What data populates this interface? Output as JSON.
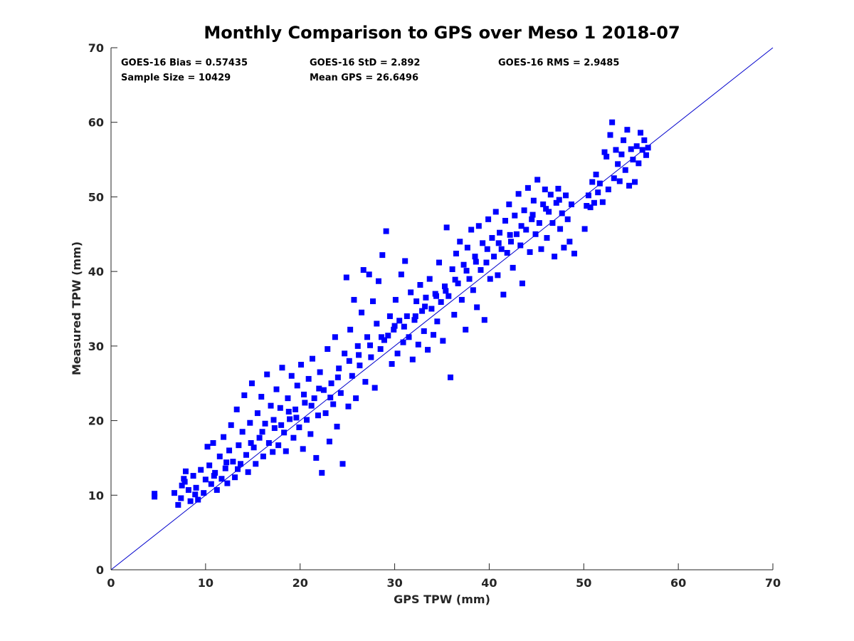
{
  "chart_data": {
    "type": "scatter",
    "title": "Monthly Comparison to GPS over Meso 1 2018-07",
    "xlabel": "GPS TPW (mm)",
    "ylabel": "Measured TPW (mm)",
    "xlim": [
      0,
      70
    ],
    "ylim": [
      0,
      70
    ],
    "xticks": [
      0,
      10,
      20,
      30,
      40,
      50,
      60,
      70
    ],
    "yticks": [
      0,
      10,
      20,
      30,
      40,
      50,
      60,
      70
    ],
    "grid": false,
    "legend": "none",
    "colors": {
      "points": "#0000ff",
      "reference_line": "#0000cc",
      "axes": "#262626"
    },
    "reference_line": {
      "from": [
        0,
        0
      ],
      "to": [
        70,
        70
      ]
    },
    "stats": [
      "GOES-16 Bias = 0.57435",
      "GOES-16 StD = 2.892",
      "GOES-16 RMS = 2.9485",
      "Sample Size = 10429",
      "Mean GPS = 26.6496"
    ],
    "series": [
      {
        "points": [
          [
            4.6,
            10.2
          ],
          [
            4.6,
            9.8
          ],
          [
            6.7,
            10.3
          ],
          [
            7.1,
            8.7
          ],
          [
            7.4,
            9.6
          ],
          [
            7.5,
            11.3
          ],
          [
            7.7,
            12.2
          ],
          [
            7.9,
            13.2
          ],
          [
            8.2,
            10.7
          ],
          [
            8.4,
            9.2
          ],
          [
            8.7,
            12.6
          ],
          [
            9.0,
            11.0
          ],
          [
            9.2,
            9.4
          ],
          [
            9.5,
            13.4
          ],
          [
            9.8,
            10.3
          ],
          [
            10.0,
            12.1
          ],
          [
            10.2,
            16.5
          ],
          [
            10.4,
            14.0
          ],
          [
            10.6,
            11.5
          ],
          [
            10.8,
            17.0
          ],
          [
            11.0,
            13.0
          ],
          [
            11.2,
            10.7
          ],
          [
            11.5,
            15.2
          ],
          [
            11.7,
            12.2
          ],
          [
            11.9,
            17.8
          ],
          [
            12.1,
            13.6
          ],
          [
            12.3,
            11.6
          ],
          [
            12.5,
            16.0
          ],
          [
            12.7,
            19.4
          ],
          [
            12.9,
            14.5
          ],
          [
            13.1,
            12.4
          ],
          [
            13.3,
            21.5
          ],
          [
            13.5,
            16.7
          ],
          [
            13.7,
            14.2
          ],
          [
            13.9,
            18.5
          ],
          [
            14.1,
            23.4
          ],
          [
            14.3,
            15.4
          ],
          [
            14.5,
            13.1
          ],
          [
            14.7,
            19.7
          ],
          [
            14.9,
            25.0
          ],
          [
            15.1,
            16.4
          ],
          [
            15.3,
            14.2
          ],
          [
            15.5,
            21.0
          ],
          [
            15.7,
            17.7
          ],
          [
            15.9,
            23.2
          ],
          [
            16.1,
            15.2
          ],
          [
            16.3,
            19.6
          ],
          [
            16.5,
            26.2
          ],
          [
            16.7,
            17.0
          ],
          [
            16.9,
            22.0
          ],
          [
            17.1,
            15.8
          ],
          [
            17.3,
            19.0
          ],
          [
            17.5,
            24.2
          ],
          [
            17.7,
            16.7
          ],
          [
            17.9,
            21.7
          ],
          [
            18.1,
            27.1
          ],
          [
            18.3,
            18.4
          ],
          [
            18.5,
            15.9
          ],
          [
            18.7,
            23.0
          ],
          [
            18.9,
            20.2
          ],
          [
            19.1,
            26.0
          ],
          [
            19.3,
            17.7
          ],
          [
            19.5,
            21.5
          ],
          [
            19.7,
            24.7
          ],
          [
            19.9,
            19.1
          ],
          [
            20.1,
            27.5
          ],
          [
            20.3,
            16.2
          ],
          [
            20.5,
            22.4
          ],
          [
            20.7,
            20.1
          ],
          [
            20.9,
            25.6
          ],
          [
            21.1,
            18.2
          ],
          [
            21.3,
            28.3
          ],
          [
            21.5,
            23.0
          ],
          [
            21.7,
            15.0
          ],
          [
            21.9,
            20.7
          ],
          [
            22.1,
            26.5
          ],
          [
            22.3,
            13.0
          ],
          [
            22.5,
            24.1
          ],
          [
            22.7,
            21.0
          ],
          [
            22.9,
            29.6
          ],
          [
            23.1,
            17.2
          ],
          [
            23.3,
            25.0
          ],
          [
            23.5,
            22.2
          ],
          [
            23.7,
            31.2
          ],
          [
            23.9,
            19.2
          ],
          [
            24.1,
            27.0
          ],
          [
            24.3,
            23.7
          ],
          [
            24.5,
            14.2
          ],
          [
            24.7,
            29.0
          ],
          [
            24.9,
            39.2
          ],
          [
            25.1,
            21.9
          ],
          [
            25.3,
            32.2
          ],
          [
            25.5,
            26.0
          ],
          [
            25.7,
            36.2
          ],
          [
            25.9,
            23.0
          ],
          [
            26.1,
            30.0
          ],
          [
            26.3,
            27.4
          ],
          [
            26.5,
            34.5
          ],
          [
            26.7,
            40.2
          ],
          [
            26.9,
            25.2
          ],
          [
            27.1,
            31.2
          ],
          [
            27.3,
            39.6
          ],
          [
            27.5,
            28.5
          ],
          [
            27.7,
            36.0
          ],
          [
            27.9,
            24.4
          ],
          [
            28.1,
            33.0
          ],
          [
            28.3,
            38.7
          ],
          [
            28.5,
            29.6
          ],
          [
            28.7,
            42.2
          ],
          [
            28.9,
            30.8
          ],
          [
            29.1,
            45.4
          ],
          [
            29.3,
            31.4
          ],
          [
            29.5,
            34.0
          ],
          [
            29.7,
            27.6
          ],
          [
            29.9,
            32.2
          ],
          [
            30.1,
            36.2
          ],
          [
            30.3,
            29.0
          ],
          [
            30.5,
            33.4
          ],
          [
            30.7,
            39.6
          ],
          [
            30.9,
            30.5
          ],
          [
            31.1,
            41.4
          ],
          [
            31.3,
            34.0
          ],
          [
            31.5,
            31.2
          ],
          [
            31.7,
            37.2
          ],
          [
            31.9,
            28.2
          ],
          [
            32.1,
            33.5
          ],
          [
            32.3,
            36.0
          ],
          [
            32.5,
            30.2
          ],
          [
            32.7,
            38.2
          ],
          [
            32.9,
            34.7
          ],
          [
            33.1,
            32.0
          ],
          [
            33.3,
            36.5
          ],
          [
            33.5,
            29.5
          ],
          [
            33.7,
            39.0
          ],
          [
            33.9,
            35.0
          ],
          [
            34.1,
            31.5
          ],
          [
            34.3,
            37.0
          ],
          [
            34.5,
            33.3
          ],
          [
            34.7,
            41.2
          ],
          [
            34.9,
            35.9
          ],
          [
            35.1,
            30.7
          ],
          [
            35.3,
            38.0
          ],
          [
            35.5,
            45.9
          ],
          [
            35.7,
            36.7
          ],
          [
            35.9,
            25.8
          ],
          [
            36.1,
            40.3
          ],
          [
            36.3,
            34.2
          ],
          [
            36.5,
            42.4
          ],
          [
            36.7,
            38.4
          ],
          [
            36.9,
            44.0
          ],
          [
            37.1,
            36.2
          ],
          [
            37.3,
            40.9
          ],
          [
            37.5,
            32.2
          ],
          [
            37.7,
            43.2
          ],
          [
            37.9,
            39.0
          ],
          [
            38.1,
            45.6
          ],
          [
            38.3,
            37.5
          ],
          [
            38.5,
            42.0
          ],
          [
            38.7,
            35.2
          ],
          [
            38.9,
            46.1
          ],
          [
            39.1,
            40.2
          ],
          [
            39.3,
            43.8
          ],
          [
            39.5,
            33.5
          ],
          [
            39.7,
            41.2
          ],
          [
            39.9,
            47.0
          ],
          [
            40.1,
            39.0
          ],
          [
            40.3,
            44.5
          ],
          [
            40.5,
            42.0
          ],
          [
            40.7,
            48.0
          ],
          [
            40.9,
            39.5
          ],
          [
            41.1,
            45.2
          ],
          [
            41.3,
            43.0
          ],
          [
            41.5,
            36.9
          ],
          [
            41.7,
            46.8
          ],
          [
            41.9,
            42.5
          ],
          [
            42.1,
            49.0
          ],
          [
            42.3,
            44.0
          ],
          [
            42.5,
            40.5
          ],
          [
            42.7,
            47.5
          ],
          [
            42.9,
            45.0
          ],
          [
            43.1,
            50.4
          ],
          [
            43.3,
            43.5
          ],
          [
            43.5,
            38.4
          ],
          [
            43.7,
            48.2
          ],
          [
            43.9,
            45.6
          ],
          [
            44.1,
            51.2
          ],
          [
            44.3,
            42.6
          ],
          [
            44.5,
            47.0
          ],
          [
            44.7,
            49.5
          ],
          [
            44.9,
            45.0
          ],
          [
            45.1,
            52.3
          ],
          [
            45.3,
            46.5
          ],
          [
            45.5,
            43.0
          ],
          [
            45.7,
            49.0
          ],
          [
            45.9,
            51.0
          ],
          [
            46.1,
            44.5
          ],
          [
            46.3,
            48.0
          ],
          [
            46.5,
            50.3
          ],
          [
            46.7,
            46.5
          ],
          [
            46.9,
            42.0
          ],
          [
            47.1,
            49.2
          ],
          [
            47.3,
            51.1
          ],
          [
            47.5,
            45.7
          ],
          [
            47.7,
            47.8
          ],
          [
            47.9,
            43.2
          ],
          [
            48.1,
            50.2
          ],
          [
            48.3,
            47.0
          ],
          [
            48.5,
            44.0
          ],
          [
            48.7,
            49.0
          ],
          [
            49.0,
            42.4
          ],
          [
            50.1,
            45.7
          ],
          [
            50.3,
            48.8
          ],
          [
            50.5,
            50.2
          ],
          [
            50.7,
            48.6
          ],
          [
            50.9,
            52.0
          ],
          [
            51.1,
            49.2
          ],
          [
            51.3,
            53.0
          ],
          [
            51.5,
            50.6
          ],
          [
            51.7,
            51.8
          ],
          [
            52.0,
            49.3
          ],
          [
            52.2,
            56.0
          ],
          [
            52.4,
            55.4
          ],
          [
            52.6,
            51.0
          ],
          [
            52.8,
            58.3
          ],
          [
            53.0,
            60.0
          ],
          [
            53.2,
            52.5
          ],
          [
            53.4,
            56.3
          ],
          [
            53.6,
            54.4
          ],
          [
            53.8,
            52.1
          ],
          [
            54.0,
            55.7
          ],
          [
            54.2,
            57.6
          ],
          [
            54.4,
            53.6
          ],
          [
            54.6,
            59.0
          ],
          [
            54.8,
            51.5
          ],
          [
            55.0,
            56.4
          ],
          [
            55.2,
            55.0
          ],
          [
            55.4,
            52.0
          ],
          [
            55.6,
            56.8
          ],
          [
            55.8,
            54.5
          ],
          [
            56.0,
            58.6
          ],
          [
            56.2,
            56.3
          ],
          [
            56.4,
            57.6
          ],
          [
            56.6,
            55.6
          ],
          [
            56.8,
            56.6
          ],
          [
            7.8,
            11.8
          ],
          [
            8.9,
            10.1
          ],
          [
            10.9,
            12.6
          ],
          [
            12.2,
            14.4
          ],
          [
            13.4,
            13.5
          ],
          [
            14.8,
            17.0
          ],
          [
            16.0,
            18.5
          ],
          [
            17.2,
            20.1
          ],
          [
            18.0,
            19.4
          ],
          [
            18.8,
            21.2
          ],
          [
            19.6,
            20.4
          ],
          [
            20.4,
            23.5
          ],
          [
            21.2,
            22.0
          ],
          [
            22.0,
            24.3
          ],
          [
            23.2,
            23.1
          ],
          [
            24.0,
            25.8
          ],
          [
            25.2,
            28.0
          ],
          [
            26.2,
            28.8
          ],
          [
            27.4,
            30.1
          ],
          [
            28.6,
            31.2
          ],
          [
            30.0,
            32.7
          ],
          [
            31.0,
            32.6
          ],
          [
            32.2,
            34.0
          ],
          [
            33.2,
            35.3
          ],
          [
            34.4,
            36.7
          ],
          [
            35.4,
            37.4
          ],
          [
            36.4,
            38.9
          ],
          [
            37.6,
            40.1
          ],
          [
            38.6,
            41.3
          ],
          [
            39.8,
            43.0
          ],
          [
            41.0,
            43.8
          ],
          [
            42.2,
            44.9
          ],
          [
            43.4,
            46.1
          ],
          [
            44.6,
            47.6
          ],
          [
            46.0,
            48.4
          ],
          [
            47.4,
            49.6
          ]
        ]
      }
    ]
  }
}
